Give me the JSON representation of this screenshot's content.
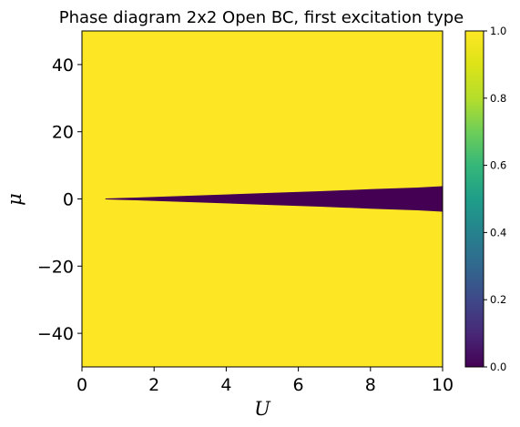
{
  "chart_data": {
    "type": "heatmap",
    "title": "Phase diagram 2x2 Open BC, first excitation type",
    "xlabel": "U",
    "ylabel": "μ",
    "xlim": [
      0,
      10
    ],
    "ylim": [
      -50,
      50
    ],
    "x_ticks": [
      0,
      2,
      4,
      6,
      8,
      10
    ],
    "x_tick_labels": [
      "0",
      "2",
      "4",
      "6",
      "8",
      "10"
    ],
    "y_ticks": [
      -40,
      -20,
      0,
      20,
      40
    ],
    "y_tick_labels": [
      "−40",
      "−20",
      "0",
      "20",
      "40"
    ],
    "colorbar": {
      "range": [
        0,
        1
      ],
      "ticks": [
        0,
        0.2,
        0.4,
        0.6,
        0.8,
        1
      ],
      "tick_labels": [
        "0.0",
        "0.2",
        "0.4",
        "0.6",
        "0.8",
        "1.0"
      ],
      "colormap": "viridis"
    },
    "background_value": 1.0,
    "region_value": 0.0,
    "colors": {
      "value_1": "#fde725",
      "value_0": "#440154"
    },
    "region_boundary": {
      "description_values": "U vs half-width of mu band where value = 0",
      "u": [
        0.65,
        1.5,
        2.6,
        3.9,
        5.2,
        6.6,
        8.0,
        9.3,
        10.0
      ],
      "half_width_mu": [
        0.15,
        0.4,
        0.8,
        1.3,
        1.8,
        2.3,
        2.9,
        3.4,
        3.8
      ]
    }
  }
}
